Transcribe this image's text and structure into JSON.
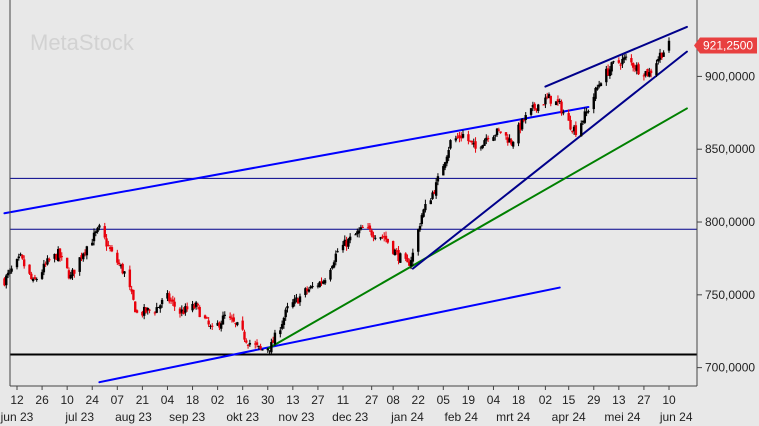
{
  "chart_data": {
    "type": "candlestick",
    "watermark": "MetaStock",
    "last_price_label": "921,2500",
    "last_price": 921.25,
    "ylim": [
      690,
      930
    ],
    "y_ticks": [
      {
        "value": 700,
        "label": "700,0000"
      },
      {
        "value": 750,
        "label": "750,0000"
      },
      {
        "value": 800,
        "label": "800,0000"
      },
      {
        "value": 850,
        "label": "850,0000"
      },
      {
        "value": 900,
        "label": "900,0000"
      }
    ],
    "x_day_ticks": [
      {
        "date": "2023-06-12",
        "label": "12"
      },
      {
        "date": "2023-06-26",
        "label": "26"
      },
      {
        "date": "2023-07-10",
        "label": "10"
      },
      {
        "date": "2023-07-24",
        "label": "24"
      },
      {
        "date": "2023-08-07",
        "label": "07"
      },
      {
        "date": "2023-08-21",
        "label": "21"
      },
      {
        "date": "2023-09-04",
        "label": "04"
      },
      {
        "date": "2023-09-18",
        "label": "18"
      },
      {
        "date": "2023-10-02",
        "label": "02"
      },
      {
        "date": "2023-10-16",
        "label": "16"
      },
      {
        "date": "2023-10-30",
        "label": "30"
      },
      {
        "date": "2023-11-13",
        "label": "13"
      },
      {
        "date": "2023-11-27",
        "label": "27"
      },
      {
        "date": "2023-12-11",
        "label": "11"
      },
      {
        "date": "2023-12-27",
        "label": "27"
      },
      {
        "date": "2024-01-08",
        "label": "08"
      },
      {
        "date": "2024-01-22",
        "label": "22"
      },
      {
        "date": "2024-02-05",
        "label": "05"
      },
      {
        "date": "2024-02-19",
        "label": "19"
      },
      {
        "date": "2024-03-04",
        "label": "04"
      },
      {
        "date": "2024-03-18",
        "label": "18"
      },
      {
        "date": "2024-04-02",
        "label": "02"
      },
      {
        "date": "2024-04-15",
        "label": "15"
      },
      {
        "date": "2024-04-29",
        "label": "29"
      },
      {
        "date": "2024-05-13",
        "label": "13"
      },
      {
        "date": "2024-05-27",
        "label": "27"
      },
      {
        "date": "2024-06-10",
        "label": "10"
      }
    ],
    "x_month_labels": [
      {
        "date": "2023-06-12",
        "label": "jun 23"
      },
      {
        "date": "2023-07-17",
        "label": "jul 23"
      },
      {
        "date": "2023-08-16",
        "label": "aug 23"
      },
      {
        "date": "2023-09-15",
        "label": "sep 23"
      },
      {
        "date": "2023-10-16",
        "label": "okt 23"
      },
      {
        "date": "2023-11-15",
        "label": "nov 23"
      },
      {
        "date": "2023-12-15",
        "label": "dec 23"
      },
      {
        "date": "2024-01-16",
        "label": "jan 24"
      },
      {
        "date": "2024-02-15",
        "label": "feb 24"
      },
      {
        "date": "2024-03-15",
        "label": "mrt 24"
      },
      {
        "date": "2024-04-15",
        "label": "apr 24"
      },
      {
        "date": "2024-05-15",
        "label": "mei 24"
      },
      {
        "date": "2024-06-14",
        "label": "jun 24"
      }
    ],
    "price_path": [
      [
        "2023-06-05",
        760
      ],
      [
        "2023-06-14",
        775
      ],
      [
        "2023-06-21",
        758
      ],
      [
        "2023-06-29",
        772
      ],
      [
        "2023-07-05",
        778
      ],
      [
        "2023-07-12",
        762
      ],
      [
        "2023-07-19",
        780
      ],
      [
        "2023-07-28",
        795
      ],
      [
        "2023-08-04",
        778
      ],
      [
        "2023-08-11",
        765
      ],
      [
        "2023-08-18",
        737
      ],
      [
        "2023-08-28",
        740
      ],
      [
        "2023-09-04",
        748
      ],
      [
        "2023-09-11",
        738
      ],
      [
        "2023-09-20",
        742
      ],
      [
        "2023-09-29",
        725
      ],
      [
        "2023-10-06",
        735
      ],
      [
        "2023-10-13",
        728
      ],
      [
        "2023-10-19",
        718
      ],
      [
        "2023-10-26",
        712
      ],
      [
        "2023-11-01",
        715
      ],
      [
        "2023-11-10",
        740
      ],
      [
        "2023-11-20",
        752
      ],
      [
        "2023-11-30",
        760
      ],
      [
        "2023-12-08",
        780
      ],
      [
        "2023-12-15",
        788
      ],
      [
        "2023-12-22",
        795
      ],
      [
        "2024-01-03",
        790
      ],
      [
        "2024-01-10",
        778
      ],
      [
        "2024-01-16",
        770
      ],
      [
        "2024-01-19",
        778
      ],
      [
        "2024-01-24",
        805
      ],
      [
        "2024-02-01",
        825
      ],
      [
        "2024-02-09",
        855
      ],
      [
        "2024-02-16",
        860
      ],
      [
        "2024-02-23",
        850
      ],
      [
        "2024-03-01",
        860
      ],
      [
        "2024-03-08",
        862
      ],
      [
        "2024-03-14",
        855
      ],
      [
        "2024-03-21",
        870
      ],
      [
        "2024-03-28",
        880
      ],
      [
        "2024-04-04",
        885
      ],
      [
        "2024-04-10",
        880
      ],
      [
        "2024-04-15",
        868
      ],
      [
        "2024-04-19",
        863
      ],
      [
        "2024-04-25",
        875
      ],
      [
        "2024-05-03",
        898
      ],
      [
        "2024-05-10",
        908
      ],
      [
        "2024-05-17",
        912
      ],
      [
        "2024-05-24",
        905
      ],
      [
        "2024-05-30",
        902
      ],
      [
        "2024-06-05",
        915
      ],
      [
        "2024-06-10",
        921.25
      ]
    ],
    "horizontal_lines": [
      {
        "value": 709,
        "color": "#000000",
        "width": 2
      },
      {
        "value": 795,
        "color": "#00008b",
        "width": 1
      },
      {
        "value": 830,
        "color": "#00008b",
        "width": 1
      }
    ],
    "trend_lines": [
      {
        "from": [
          "2023-06-05",
          806
        ],
        "to": [
          "2024-04-26",
          879
        ],
        "color": "#0000ff",
        "width": 2
      },
      {
        "from": [
          "2023-07-28",
          690
        ],
        "to": [
          "2024-04-10",
          755
        ],
        "color": "#0000ff",
        "width": 2
      },
      {
        "from": [
          "2023-10-30",
          713
        ],
        "to": [
          "2024-06-20",
          878
        ],
        "color": "#008000",
        "width": 2
      },
      {
        "from": [
          "2024-01-19",
          768
        ],
        "to": [
          "2024-06-20",
          917
        ],
        "color": "#00008b",
        "width": 2
      },
      {
        "from": [
          "2024-04-02",
          893
        ],
        "to": [
          "2024-06-20",
          934
        ],
        "color": "#00008b",
        "width": 2
      }
    ],
    "colors": {
      "up": "#000000",
      "down": "#e8000b",
      "background": "#e8e8e8",
      "price_tag": "#e84040"
    }
  }
}
